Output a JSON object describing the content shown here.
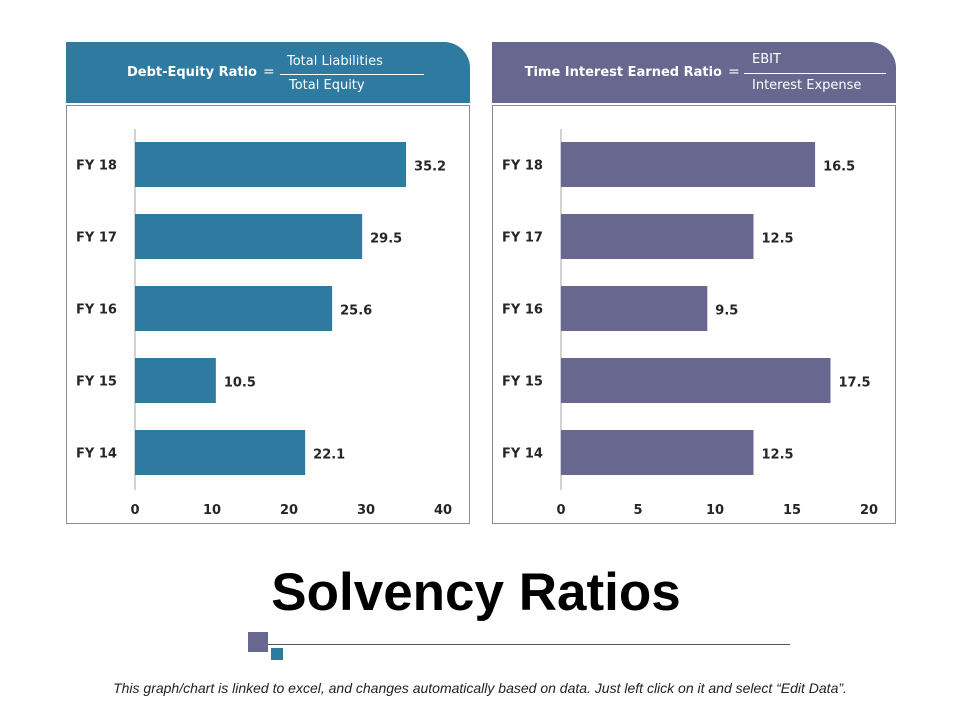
{
  "title": "Solvency Ratios",
  "footer": "This graph/chart is linked to excel, and changes automatically based on data. Just left click on it and select “Edit Data”.",
  "colors": {
    "left": "#2e7aa0",
    "right": "#67678f"
  },
  "panels": [
    {
      "formula": {
        "name": "Debt-Equity Ratio",
        "equals": "=",
        "numerator": "Total Liabilities",
        "denominator": "Total Equity"
      },
      "chart_type": "bar"
    },
    {
      "formula": {
        "name": "Time Interest Earned Ratio",
        "equals": "=",
        "numerator": "EBIT",
        "denominator": "Interest Expense"
      },
      "chart_type": "bar"
    }
  ],
  "chart_data": [
    {
      "type": "bar",
      "orientation": "horizontal",
      "title": "Debt-Equity Ratio",
      "categories": [
        "FY 18",
        "FY 17",
        "FY 16",
        "FY 15",
        "FY 14"
      ],
      "values": [
        35.2,
        29.5,
        25.6,
        10.5,
        22.1
      ],
      "xlim": [
        0,
        40
      ],
      "xticks": [
        0,
        10,
        20,
        30,
        40
      ],
      "xlabel": "",
      "ylabel": "",
      "grid": false
    },
    {
      "type": "bar",
      "orientation": "horizontal",
      "title": "Time Interest Earned Ratio",
      "categories": [
        "FY 18",
        "FY 17",
        "FY 16",
        "FY 15",
        "FY 14"
      ],
      "values": [
        16.5,
        12.5,
        9.5,
        17.5,
        12.5
      ],
      "xlim": [
        0,
        20
      ],
      "xticks": [
        0,
        5,
        10,
        15,
        20
      ],
      "xlabel": "",
      "ylabel": "",
      "grid": false
    }
  ]
}
